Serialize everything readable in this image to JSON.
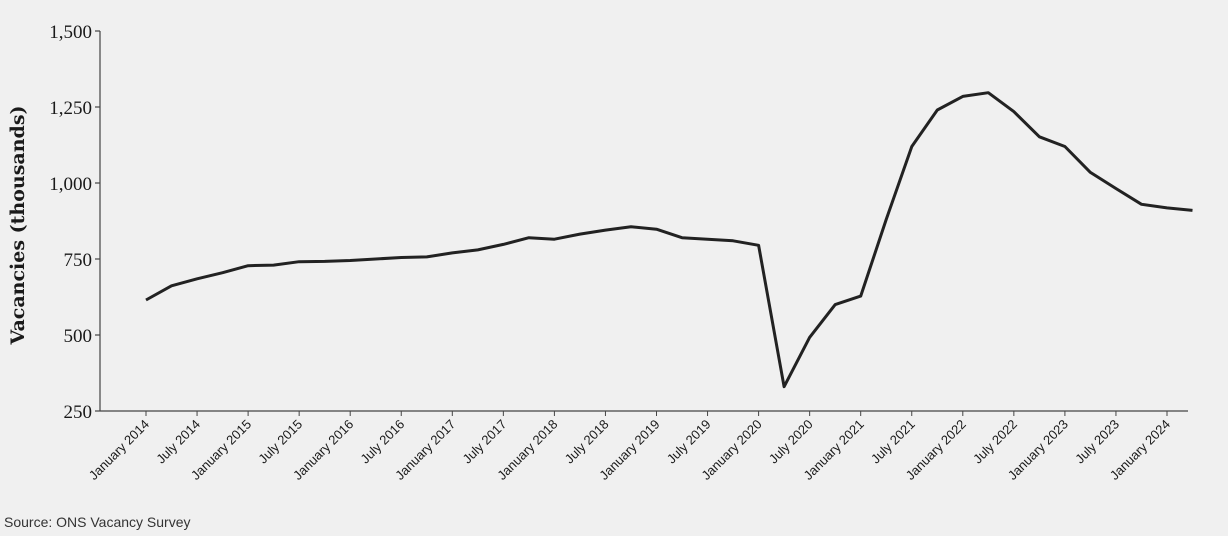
{
  "chart_data": {
    "type": "line",
    "ylabel": "Vacancies (thousands)",
    "xlabel": "",
    "ylim": [
      250,
      1500
    ],
    "yticks": [
      250,
      500,
      750,
      1000,
      1250,
      1500
    ],
    "ytick_labels": [
      "250",
      "500",
      "750",
      "1,000",
      "1,250",
      "1,500"
    ],
    "xtick_labels": [
      "January 2014",
      "July 2014",
      "January 2015",
      "July 2015",
      "January 2016",
      "July 2016",
      "January 2017",
      "July 2017",
      "January 2018",
      "July 2018",
      "January 2019",
      "July 2019",
      "January 2020",
      "July 2020",
      "January 2021",
      "July 2021",
      "January 2022",
      "July 2022",
      "January 2023",
      "July 2023",
      "January 2024"
    ],
    "grid": false,
    "line_color": "#222222",
    "series": [
      {
        "x": [
          "2014-01",
          "2014-04",
          "2014-07",
          "2014-10",
          "2015-01",
          "2015-04",
          "2015-07",
          "2015-10",
          "2016-01",
          "2016-04",
          "2016-07",
          "2016-10",
          "2017-01",
          "2017-04",
          "2017-07",
          "2017-10",
          "2018-01",
          "2018-04",
          "2018-07",
          "2018-10",
          "2019-01",
          "2019-04",
          "2019-07",
          "2019-10",
          "2020-01",
          "2020-04",
          "2020-07",
          "2020-10",
          "2021-01",
          "2021-04",
          "2021-07",
          "2021-10",
          "2022-01",
          "2022-04",
          "2022-07",
          "2022-10",
          "2023-01",
          "2023-04",
          "2023-07",
          "2023-10",
          "2024-01",
          "2024-04"
        ],
        "values": [
          615,
          662,
          685,
          705,
          728,
          730,
          741,
          742,
          745,
          750,
          755,
          757,
          770,
          780,
          798,
          820,
          815,
          832,
          845,
          856,
          848,
          820,
          815,
          810,
          795,
          330,
          492,
          600,
          628,
          880,
          1120,
          1240,
          1285,
          1297,
          1235,
          1152,
          1120,
          1035,
          982,
          930,
          918,
          910
        ]
      }
    ]
  },
  "source": "Source: ONS Vacancy Survey"
}
